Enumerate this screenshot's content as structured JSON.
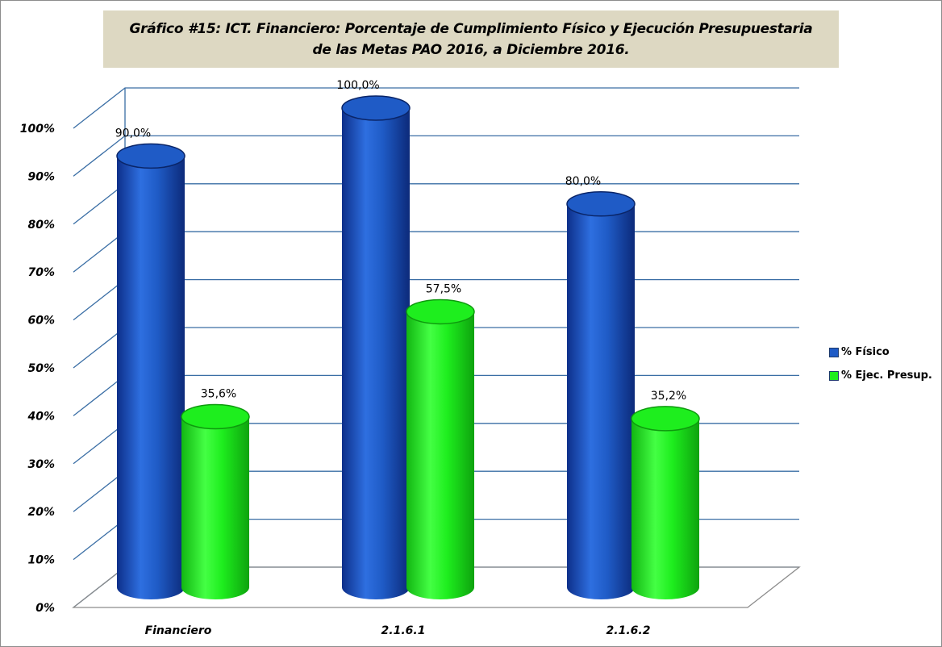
{
  "title": {
    "line1": "Gráfico #15: ICT.  Financiero: Porcentaje de  Cumplimiento Físico y  Ejecución Presupuestaria",
    "line2": "de las Metas  PAO 2016, a  Diciembre 2016."
  },
  "colors": {
    "fisico": "#1f5bc6",
    "ejec": "#1eee1e",
    "title_bg": "#ddd8c2",
    "gridline": "#3a6ea5"
  },
  "chart_data": {
    "type": "bar",
    "title": "Gráfico #15: ICT.  Financiero: Porcentaje de  Cumplimiento Físico y  Ejecución Presupuestaria de las Metas  PAO 2016, a  Diciembre 2016.",
    "categories": [
      "Financiero",
      "2.1.6.1",
      "2.1.6.2"
    ],
    "series": [
      {
        "name": "% Físico",
        "values": [
          90.0,
          100.0,
          80.0
        ],
        "labels": [
          "90,0%",
          "100,0%",
          "80,0%"
        ]
      },
      {
        "name": "% Ejec. Presup.",
        "values": [
          35.6,
          57.5,
          35.2
        ],
        "labels": [
          "35,6%",
          "57,5%",
          "35,2%"
        ]
      }
    ],
    "y_ticks": [
      "0%",
      "10%",
      "20%",
      "30%",
      "40%",
      "50%",
      "60%",
      "70%",
      "80%",
      "90%",
      "100%"
    ],
    "ylim": [
      0,
      100
    ],
    "grid": true,
    "legend_position": "right",
    "style": "3d-cylinder"
  }
}
